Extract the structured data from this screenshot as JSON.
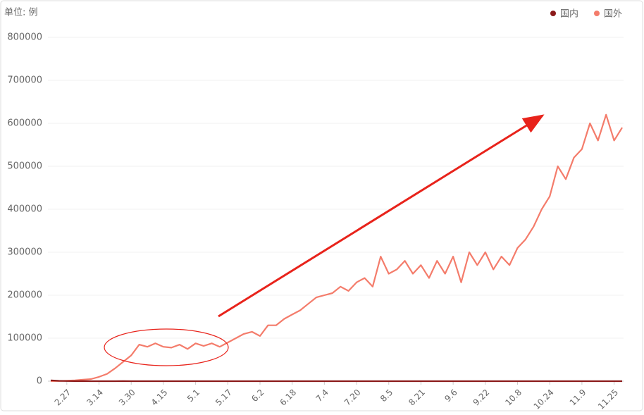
{
  "chart_data": {
    "type": "line",
    "unit_label": "单位: 例",
    "categories": [
      null,
      null,
      "2.27",
      null,
      null,
      null,
      "3.14",
      null,
      null,
      null,
      "3.30",
      null,
      null,
      null,
      "4.15",
      null,
      null,
      null,
      "5.1",
      null,
      null,
      null,
      "5.17",
      null,
      null,
      null,
      "6.2",
      null,
      null,
      null,
      "6.18",
      null,
      null,
      null,
      "7.4",
      null,
      null,
      null,
      "7.20",
      null,
      null,
      null,
      "8.5",
      null,
      null,
      null,
      "8.21",
      null,
      null,
      null,
      "9.6",
      null,
      null,
      null,
      "9.22",
      null,
      null,
      null,
      "10.8",
      null,
      null,
      null,
      "10.24",
      null,
      null,
      null,
      "11.9",
      null,
      null,
      null,
      "11.25",
      null
    ],
    "series": [
      {
        "name": "国内",
        "color": "#8b1a1a",
        "values": [
          2000,
          800,
          400,
          200,
          100,
          50,
          30,
          40,
          80,
          100,
          60,
          50,
          60,
          40,
          30,
          20,
          20,
          10,
          10,
          10,
          10,
          10,
          20,
          10,
          10,
          10,
          10,
          20,
          30,
          40,
          20,
          10,
          10,
          20,
          20,
          10,
          20,
          40,
          50,
          60,
          80,
          40,
          30,
          20,
          20,
          30,
          20,
          20,
          20,
          20,
          20,
          20,
          20,
          20,
          20,
          20,
          20,
          20,
          20,
          20,
          20,
          20,
          20,
          20,
          20,
          20,
          20,
          20,
          20,
          20,
          20,
          20
        ]
      },
      {
        "name": "国外",
        "color": "#f47c6b",
        "values": [
          100,
          300,
          1000,
          2000,
          3500,
          5000,
          10000,
          17000,
          30000,
          45000,
          60000,
          85000,
          80000,
          88000,
          80000,
          78000,
          85000,
          75000,
          88000,
          82000,
          88000,
          80000,
          90000,
          100000,
          110000,
          115000,
          105000,
          130000,
          130000,
          145000,
          155000,
          165000,
          180000,
          195000,
          200000,
          205000,
          220000,
          210000,
          230000,
          240000,
          220000,
          290000,
          250000,
          260000,
          280000,
          250000,
          270000,
          240000,
          280000,
          250000,
          290000,
          230000,
          300000,
          270000,
          300000,
          260000,
          290000,
          270000,
          310000,
          330000,
          360000,
          400000,
          430000,
          500000,
          470000,
          520000,
          540000,
          600000,
          560000,
          620000,
          560000,
          590000
        ]
      }
    ],
    "ylim": [
      0,
      800000
    ],
    "yticks": [
      0,
      100000,
      200000,
      300000,
      400000,
      500000,
      600000,
      700000,
      800000
    ],
    "grid": true,
    "legend": "top-right"
  }
}
